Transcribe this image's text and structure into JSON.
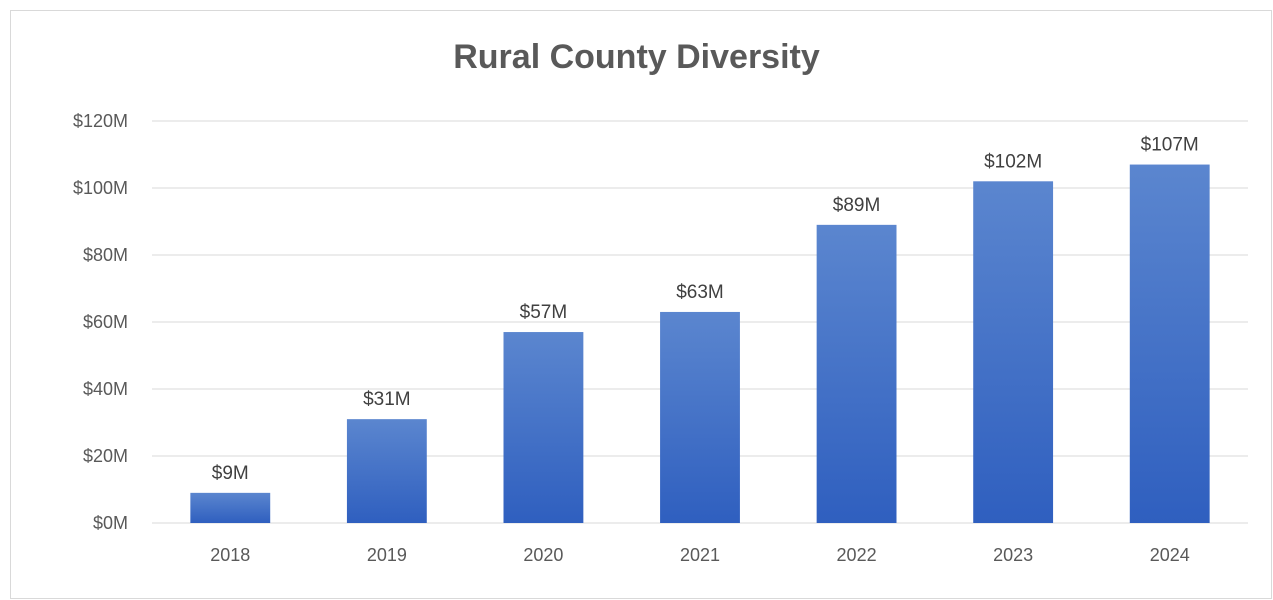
{
  "chart_data": {
    "type": "bar",
    "title": "Rural County Diversity",
    "xlabel": "",
    "ylabel": "",
    "categories": [
      "2018",
      "2019",
      "2020",
      "2021",
      "2022",
      "2023",
      "2024"
    ],
    "values": [
      9,
      31,
      57,
      63,
      89,
      102,
      107
    ],
    "data_labels": [
      "$9M",
      "$31M",
      "$57M",
      "$63M",
      "$89M",
      "$102M",
      "$107M"
    ],
    "ylim": [
      0,
      120
    ],
    "y_ticks": [
      0,
      20,
      40,
      60,
      80,
      100,
      120
    ],
    "y_tick_labels": [
      "$0M",
      "$20M",
      "$40M",
      "$60M",
      "$80M",
      "$100M",
      "$120M"
    ],
    "grid": true,
    "legend": "none",
    "colors": {
      "bar_top": "#5b86cf",
      "bar_bottom": "#2f5fbf",
      "grid": "#d9d9d9",
      "text": "#595959"
    }
  }
}
